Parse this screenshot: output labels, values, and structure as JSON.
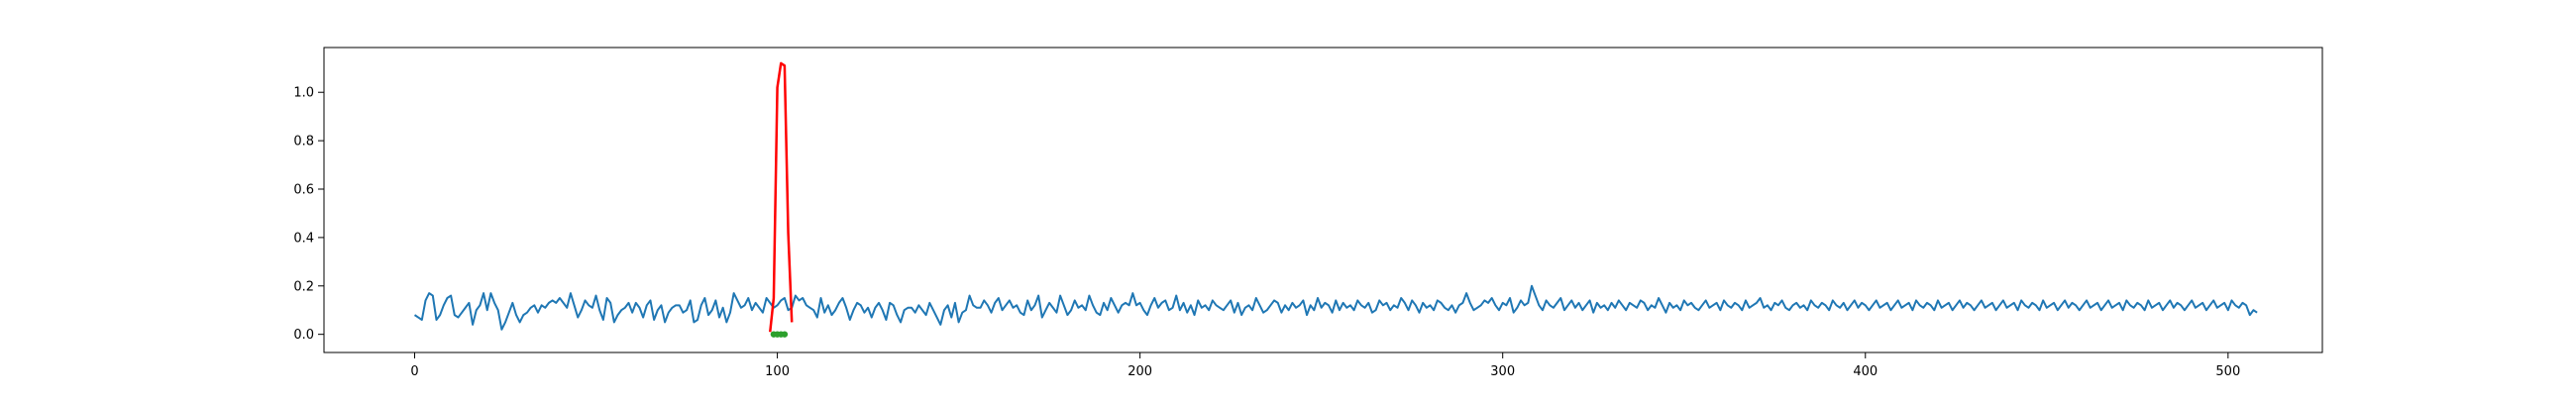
{
  "chart_data": {
    "type": "line",
    "title": "",
    "xlabel": "",
    "ylabel": "",
    "xlim": [
      -25,
      526
    ],
    "ylim": [
      -0.075,
      1.185
    ],
    "x_ticks": [
      0,
      100,
      200,
      300,
      400,
      500
    ],
    "x_tick_labels": [
      "0",
      "100",
      "200",
      "300",
      "400",
      "500"
    ],
    "y_ticks": [
      0.0,
      0.2,
      0.4,
      0.6,
      0.8,
      1.0
    ],
    "y_tick_labels": [
      "0.0",
      "0.2",
      "0.4",
      "0.6",
      "0.8",
      "1.0"
    ],
    "grid": false,
    "legend": "none",
    "series": [
      {
        "role": "noise",
        "color": "#1f77b4",
        "x_start": 0,
        "x_step": 1,
        "values": [
          0.08,
          0.07,
          0.06,
          0.14,
          0.17,
          0.16,
          0.06,
          0.08,
          0.12,
          0.15,
          0.16,
          0.08,
          0.07,
          0.09,
          0.11,
          0.13,
          0.04,
          0.1,
          0.12,
          0.17,
          0.1,
          0.17,
          0.13,
          0.1,
          0.02,
          0.05,
          0.09,
          0.13,
          0.08,
          0.05,
          0.08,
          0.09,
          0.11,
          0.12,
          0.09,
          0.12,
          0.11,
          0.13,
          0.14,
          0.13,
          0.15,
          0.13,
          0.11,
          0.17,
          0.12,
          0.07,
          0.1,
          0.14,
          0.12,
          0.11,
          0.16,
          0.1,
          0.06,
          0.15,
          0.13,
          0.05,
          0.08,
          0.1,
          0.11,
          0.13,
          0.09,
          0.13,
          0.11,
          0.07,
          0.12,
          0.14,
          0.06,
          0.1,
          0.12,
          0.05,
          0.09,
          0.11,
          0.12,
          0.12,
          0.09,
          0.1,
          0.14,
          0.05,
          0.06,
          0.12,
          0.15,
          0.08,
          0.1,
          0.14,
          0.07,
          0.11,
          0.05,
          0.09,
          0.17,
          0.14,
          0.11,
          0.12,
          0.15,
          0.1,
          0.13,
          0.11,
          0.09,
          0.15,
          0.13,
          0.11,
          0.12,
          0.14,
          0.15,
          0.1,
          0.11,
          0.16,
          0.14,
          0.15,
          0.12,
          0.11,
          0.1,
          0.07,
          0.15,
          0.09,
          0.12,
          0.08,
          0.1,
          0.13,
          0.15,
          0.11,
          0.06,
          0.1,
          0.13,
          0.12,
          0.09,
          0.11,
          0.07,
          0.11,
          0.13,
          0.1,
          0.06,
          0.13,
          0.12,
          0.08,
          0.05,
          0.1,
          0.11,
          0.11,
          0.09,
          0.12,
          0.1,
          0.08,
          0.13,
          0.1,
          0.07,
          0.04,
          0.1,
          0.12,
          0.07,
          0.13,
          0.05,
          0.09,
          0.1,
          0.16,
          0.12,
          0.11,
          0.11,
          0.14,
          0.12,
          0.09,
          0.13,
          0.15,
          0.1,
          0.12,
          0.14,
          0.11,
          0.12,
          0.09,
          0.08,
          0.14,
          0.1,
          0.12,
          0.16,
          0.07,
          0.1,
          0.13,
          0.11,
          0.09,
          0.16,
          0.12,
          0.08,
          0.1,
          0.14,
          0.11,
          0.12,
          0.1,
          0.16,
          0.12,
          0.09,
          0.08,
          0.13,
          0.1,
          0.15,
          0.12,
          0.09,
          0.12,
          0.13,
          0.12,
          0.17,
          0.12,
          0.13,
          0.1,
          0.08,
          0.12,
          0.15,
          0.11,
          0.13,
          0.14,
          0.1,
          0.11,
          0.16,
          0.1,
          0.13,
          0.09,
          0.12,
          0.08,
          0.14,
          0.11,
          0.12,
          0.1,
          0.14,
          0.12,
          0.11,
          0.1,
          0.12,
          0.14,
          0.09,
          0.13,
          0.08,
          0.11,
          0.12,
          0.1,
          0.15,
          0.12,
          0.09,
          0.1,
          0.12,
          0.14,
          0.13,
          0.09,
          0.12,
          0.1,
          0.13,
          0.11,
          0.12,
          0.14,
          0.08,
          0.12,
          0.1,
          0.15,
          0.11,
          0.13,
          0.12,
          0.09,
          0.14,
          0.1,
          0.13,
          0.11,
          0.12,
          0.1,
          0.14,
          0.12,
          0.11,
          0.13,
          0.09,
          0.1,
          0.14,
          0.12,
          0.13,
          0.1,
          0.12,
          0.11,
          0.15,
          0.13,
          0.1,
          0.14,
          0.12,
          0.09,
          0.13,
          0.11,
          0.12,
          0.1,
          0.14,
          0.13,
          0.11,
          0.1,
          0.12,
          0.09,
          0.12,
          0.13,
          0.17,
          0.13,
          0.1,
          0.11,
          0.12,
          0.14,
          0.13,
          0.15,
          0.12,
          0.1,
          0.13,
          0.12,
          0.15,
          0.09,
          0.11,
          0.14,
          0.12,
          0.13,
          0.2,
          0.16,
          0.12,
          0.1,
          0.14,
          0.12,
          0.11,
          0.13,
          0.15,
          0.1,
          0.12,
          0.14,
          0.11,
          0.13,
          0.1,
          0.12,
          0.14,
          0.09,
          0.13,
          0.11,
          0.12,
          0.1,
          0.13,
          0.11,
          0.14,
          0.12,
          0.1,
          0.13,
          0.12,
          0.11,
          0.14,
          0.13,
          0.1,
          0.12,
          0.11,
          0.15,
          0.12,
          0.09,
          0.13,
          0.11,
          0.12,
          0.1,
          0.14,
          0.12,
          0.13,
          0.11,
          0.1,
          0.12,
          0.14,
          0.11,
          0.12,
          0.13,
          0.1,
          0.14,
          0.12,
          0.11,
          0.13,
          0.12,
          0.1,
          0.14,
          0.11,
          0.12,
          0.13,
          0.15,
          0.11,
          0.12,
          0.1,
          0.13,
          0.12,
          0.14,
          0.11,
          0.1,
          0.12,
          0.13,
          0.11,
          0.12,
          0.1,
          0.14,
          0.12,
          0.11,
          0.13,
          0.12,
          0.1,
          0.14,
          0.12,
          0.11,
          0.13,
          0.1,
          0.12,
          0.14,
          0.11,
          0.13,
          0.12,
          0.1,
          0.12,
          0.14,
          0.11,
          0.12,
          0.13,
          0.1,
          0.12,
          0.14,
          0.11,
          0.12,
          0.13,
          0.1,
          0.14,
          0.12,
          0.11,
          0.13,
          0.12,
          0.1,
          0.14,
          0.11,
          0.12,
          0.13,
          0.1,
          0.12,
          0.14,
          0.11,
          0.13,
          0.12,
          0.1,
          0.12,
          0.14,
          0.11,
          0.12,
          0.13,
          0.1,
          0.12,
          0.14,
          0.11,
          0.12,
          0.13,
          0.1,
          0.14,
          0.12,
          0.11,
          0.13,
          0.12,
          0.1,
          0.14,
          0.11,
          0.12,
          0.13,
          0.1,
          0.12,
          0.14,
          0.11,
          0.13,
          0.12,
          0.1,
          0.12,
          0.14,
          0.11,
          0.12,
          0.13,
          0.1,
          0.12,
          0.14,
          0.11,
          0.12,
          0.13,
          0.1,
          0.14,
          0.12,
          0.11,
          0.13,
          0.12,
          0.1,
          0.14,
          0.11,
          0.12,
          0.13,
          0.1,
          0.12,
          0.14,
          0.11,
          0.13,
          0.12,
          0.1,
          0.12,
          0.14,
          0.11,
          0.12,
          0.13,
          0.1,
          0.12,
          0.14,
          0.11,
          0.12,
          0.13,
          0.1,
          0.14,
          0.12,
          0.11,
          0.13,
          0.12,
          0.08,
          0.1,
          0.09
        ]
      },
      {
        "role": "pulse",
        "color": "#ff0000",
        "x": [
          98,
          99,
          100,
          101,
          102,
          103,
          104
        ],
        "values": [
          0.01,
          0.15,
          1.02,
          1.12,
          1.11,
          0.42,
          0.05
        ]
      },
      {
        "role": "markers",
        "color": "#2ca02c",
        "x": [
          99,
          100,
          101,
          102
        ],
        "values": [
          0.0,
          0.0,
          0.0,
          0.0
        ]
      }
    ]
  }
}
